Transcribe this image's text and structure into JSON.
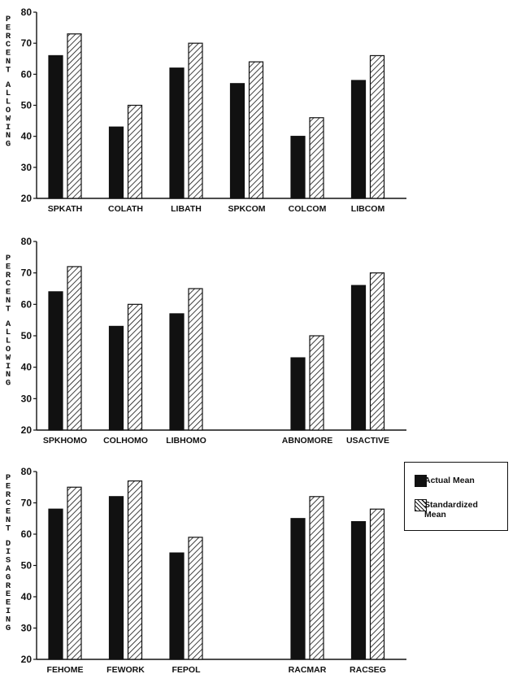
{
  "legend": {
    "actual_label": "Actual Mean",
    "standardized_label_line1": "Standardized",
    "standardized_label_line2": "Mean"
  },
  "chart_data": [
    {
      "type": "bar",
      "ylabel": "PERCENT ALLOWING",
      "ylim": [
        20,
        80
      ],
      "yticks": [
        20,
        30,
        40,
        50,
        60,
        70,
        80
      ],
      "categories": [
        "SPKATH",
        "COLATH",
        "LIBATH",
        "SPKCOM",
        "COLCOM",
        "LIBCOM"
      ],
      "series": [
        {
          "name": "Actual Mean",
          "values": [
            66,
            43,
            62,
            57,
            40,
            58
          ]
        },
        {
          "name": "Standardized Mean",
          "values": [
            73,
            50,
            70,
            64,
            46,
            66
          ]
        }
      ]
    },
    {
      "type": "bar",
      "ylabel": "PERCENT ALLOWING",
      "ylim": [
        20,
        80
      ],
      "yticks": [
        20,
        30,
        40,
        50,
        60,
        70,
        80
      ],
      "categories": [
        "SPKHOMO",
        "COLHOMO",
        "LIBHOMO",
        "",
        "ABNOMORE",
        "USACTIVE"
      ],
      "series": [
        {
          "name": "Actual Mean",
          "values": [
            64,
            53,
            57,
            null,
            43,
            66
          ]
        },
        {
          "name": "Standardized Mean",
          "values": [
            72,
            60,
            65,
            null,
            50,
            70
          ]
        }
      ]
    },
    {
      "type": "bar",
      "ylabel": "PERCENT DISAGREEING",
      "ylim": [
        20,
        80
      ],
      "yticks": [
        20,
        30,
        40,
        50,
        60,
        70,
        80
      ],
      "categories": [
        "FEHOME",
        "FEWORK",
        "FEPOL",
        "",
        "RACMAR",
        "RACSEG"
      ],
      "series": [
        {
          "name": "Actual Mean",
          "values": [
            68,
            72,
            54,
            null,
            65,
            64
          ]
        },
        {
          "name": "Standardized Mean",
          "values": [
            75,
            77,
            59,
            null,
            72,
            68
          ]
        }
      ]
    }
  ]
}
